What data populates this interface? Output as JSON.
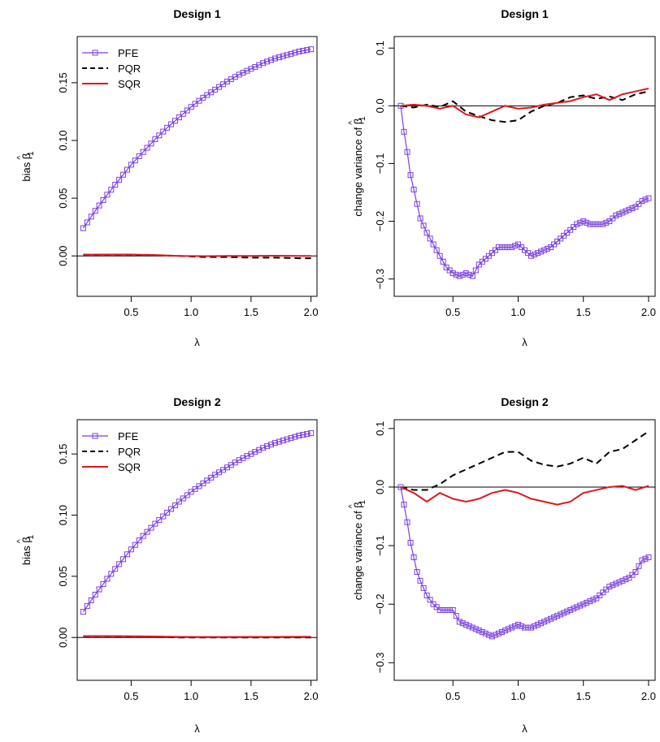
{
  "colors": {
    "PFE": "#7b3fe4",
    "PQR": "#000000",
    "SQR": "#e0181d",
    "axis": "#000000"
  },
  "chart_data": [
    {
      "type": "line",
      "title": "Design 1",
      "xlabel": "λ",
      "ylabel": "bias β̂₁",
      "ylabel_parts": {
        "main": "bias β",
        "sub": "1",
        "hat": true
      },
      "xlim": [
        0.05,
        2.05
      ],
      "ylim": [
        -0.035,
        0.19
      ],
      "xticks": [
        "0.5",
        "1.0",
        "1.5",
        "2.0"
      ],
      "yticks": [
        "0.00",
        "0.05",
        "0.10",
        "0.15"
      ],
      "legend": {
        "placement": "top-left",
        "entries": [
          "PFE",
          "PQR",
          "SQR"
        ]
      },
      "hline": 0,
      "series": [
        {
          "name": "PFE",
          "style": "line-square",
          "x": [
            0.1,
            0.2,
            0.3,
            0.4,
            0.5,
            0.6,
            0.7,
            0.8,
            0.9,
            1.0,
            1.1,
            1.2,
            1.3,
            1.4,
            1.5,
            1.6,
            1.7,
            1.8,
            1.9,
            2.0
          ],
          "y": [
            0.024,
            0.039,
            0.053,
            0.066,
            0.079,
            0.09,
            0.101,
            0.111,
            0.12,
            0.129,
            0.137,
            0.144,
            0.151,
            0.157,
            0.162,
            0.167,
            0.171,
            0.174,
            0.177,
            0.179
          ]
        },
        {
          "name": "PQR",
          "style": "dashed",
          "x": [
            0.1,
            0.3,
            0.5,
            0.7,
            0.9,
            1.1,
            1.3,
            1.5,
            1.7,
            1.9,
            2.0
          ],
          "y": [
            0.001,
            0.001,
            0.001,
            0.0005,
            0.0,
            -0.001,
            -0.001,
            -0.0015,
            -0.0015,
            -0.002,
            -0.002
          ]
        },
        {
          "name": "SQR",
          "style": "solid",
          "x": [
            0.1,
            0.3,
            0.5,
            0.7,
            0.9,
            1.1,
            1.3,
            1.5,
            1.7,
            1.9,
            2.0
          ],
          "y": [
            0.001,
            0.0012,
            0.0012,
            0.0008,
            0.0,
            -0.0002,
            0.0,
            0.0,
            0.0002,
            0.0,
            0.0
          ]
        }
      ]
    },
    {
      "type": "line",
      "title": "Design 1",
      "xlabel": "λ",
      "ylabel": "change variance of β̂₁",
      "ylabel_parts": {
        "main": "change variance of β",
        "sub": "1",
        "hat": true
      },
      "xlim": [
        0.05,
        2.05
      ],
      "ylim": [
        -0.33,
        0.12
      ],
      "xticks": [
        "0.5",
        "1.0",
        "1.5",
        "2.0"
      ],
      "yticks": [
        "0.1",
        "0.0",
        "−0.1",
        "−0.2",
        "−0.3"
      ],
      "ytick_values": [
        0.1,
        0.0,
        -0.1,
        -0.2,
        -0.3
      ],
      "hline": 0,
      "series": [
        {
          "name": "PFE",
          "style": "line-square",
          "x": [
            0.1,
            0.125,
            0.15,
            0.175,
            0.2,
            0.225,
            0.25,
            0.3,
            0.35,
            0.4,
            0.45,
            0.5,
            0.55,
            0.6,
            0.65,
            0.7,
            0.75,
            0.8,
            0.85,
            0.9,
            0.95,
            1.0,
            1.05,
            1.1,
            1.15,
            1.2,
            1.25,
            1.3,
            1.35,
            1.4,
            1.45,
            1.5,
            1.55,
            1.6,
            1.65,
            1.7,
            1.75,
            1.8,
            1.85,
            1.9,
            1.95,
            2.0
          ],
          "y": [
            0.0,
            -0.045,
            -0.08,
            -0.12,
            -0.145,
            -0.17,
            -0.195,
            -0.22,
            -0.24,
            -0.26,
            -0.28,
            -0.29,
            -0.295,
            -0.29,
            -0.295,
            -0.275,
            -0.265,
            -0.255,
            -0.245,
            -0.245,
            -0.245,
            -0.24,
            -0.25,
            -0.26,
            -0.255,
            -0.25,
            -0.245,
            -0.235,
            -0.225,
            -0.215,
            -0.205,
            -0.2,
            -0.205,
            -0.205,
            -0.205,
            -0.2,
            -0.19,
            -0.185,
            -0.18,
            -0.175,
            -0.165,
            -0.16
          ]
        },
        {
          "name": "PQR",
          "style": "dashed",
          "x": [
            0.1,
            0.2,
            0.3,
            0.4,
            0.5,
            0.6,
            0.7,
            0.8,
            0.9,
            1.0,
            1.1,
            1.2,
            1.3,
            1.4,
            1.5,
            1.6,
            1.7,
            1.8,
            1.9,
            2.0
          ],
          "y": [
            0.0,
            -0.003,
            0.002,
            -0.002,
            0.008,
            -0.01,
            -0.018,
            -0.025,
            -0.028,
            -0.025,
            -0.01,
            0.0,
            0.005,
            0.015,
            0.018,
            0.012,
            0.016,
            0.01,
            0.02,
            0.025
          ]
        },
        {
          "name": "SQR",
          "style": "solid",
          "x": [
            0.1,
            0.2,
            0.3,
            0.4,
            0.5,
            0.6,
            0.7,
            0.8,
            0.9,
            1.0,
            1.1,
            1.2,
            1.3,
            1.4,
            1.5,
            1.6,
            1.7,
            1.8,
            1.9,
            2.0
          ],
          "y": [
            0.0,
            0.002,
            0.0,
            -0.005,
            0.0,
            -0.015,
            -0.02,
            -0.01,
            0.0,
            -0.005,
            -0.003,
            0.002,
            0.005,
            0.008,
            0.015,
            0.02,
            0.01,
            0.02,
            0.025,
            0.03
          ]
        }
      ]
    },
    {
      "type": "line",
      "title": "Design 2",
      "xlabel": "λ",
      "ylabel": "bias β̂₁",
      "ylabel_parts": {
        "main": "bias β",
        "sub": "1",
        "hat": true
      },
      "xlim": [
        0.05,
        2.05
      ],
      "ylim": [
        -0.035,
        0.178
      ],
      "xticks": [
        "0.5",
        "1.0",
        "1.5",
        "2.0"
      ],
      "yticks": [
        "0.00",
        "0.05",
        "0.10",
        "0.15"
      ],
      "legend": {
        "placement": "top-left",
        "entries": [
          "PFE",
          "PQR",
          "SQR"
        ]
      },
      "hline": 0,
      "series": [
        {
          "name": "PFE",
          "style": "line-square",
          "x": [
            0.1,
            0.2,
            0.3,
            0.4,
            0.5,
            0.6,
            0.7,
            0.8,
            0.9,
            1.0,
            1.1,
            1.2,
            1.3,
            1.4,
            1.5,
            1.6,
            1.7,
            1.8,
            1.9,
            2.0
          ],
          "y": [
            0.021,
            0.035,
            0.048,
            0.06,
            0.072,
            0.083,
            0.093,
            0.102,
            0.111,
            0.119,
            0.126,
            0.133,
            0.139,
            0.145,
            0.15,
            0.155,
            0.159,
            0.162,
            0.165,
            0.167
          ]
        },
        {
          "name": "PQR",
          "style": "dashed",
          "x": [
            0.1,
            0.3,
            0.5,
            0.7,
            0.9,
            1.1,
            1.3,
            1.5,
            1.7,
            1.9,
            2.0
          ],
          "y": [
            0.001,
            0.001,
            0.0008,
            0.0005,
            0.0,
            0.0,
            0.0,
            0.0,
            0.0,
            0.0,
            0.0
          ]
        },
        {
          "name": "SQR",
          "style": "solid",
          "x": [
            0.1,
            0.3,
            0.5,
            0.7,
            0.9,
            1.1,
            1.3,
            1.5,
            1.7,
            1.9,
            2.0
          ],
          "y": [
            0.0012,
            0.0012,
            0.001,
            0.0008,
            0.0005,
            0.0004,
            0.0004,
            0.0005,
            0.0005,
            0.0006,
            0.0006
          ]
        }
      ]
    },
    {
      "type": "line",
      "title": "Design 2",
      "xlabel": "λ",
      "ylabel": "change variance of β̂₁",
      "ylabel_parts": {
        "main": "change variance of β",
        "sub": "1",
        "hat": true
      },
      "xlim": [
        0.05,
        2.05
      ],
      "ylim": [
        -0.33,
        0.115
      ],
      "xticks": [
        "0.5",
        "1.0",
        "1.5",
        "2.0"
      ],
      "yticks": [
        "0.1",
        "0.0",
        "−0.1",
        "−0.2",
        "−0.3"
      ],
      "ytick_values": [
        0.1,
        0.0,
        -0.1,
        -0.2,
        -0.3
      ],
      "hline": 0,
      "series": [
        {
          "name": "PFE",
          "style": "line-square",
          "x": [
            0.1,
            0.125,
            0.15,
            0.175,
            0.2,
            0.225,
            0.25,
            0.3,
            0.35,
            0.4,
            0.45,
            0.5,
            0.55,
            0.6,
            0.65,
            0.7,
            0.75,
            0.8,
            0.85,
            0.9,
            0.95,
            1.0,
            1.05,
            1.1,
            1.15,
            1.2,
            1.25,
            1.3,
            1.35,
            1.4,
            1.45,
            1.5,
            1.55,
            1.6,
            1.65,
            1.7,
            1.75,
            1.8,
            1.85,
            1.9,
            1.95,
            2.0
          ],
          "y": [
            0.0,
            -0.03,
            -0.06,
            -0.095,
            -0.12,
            -0.145,
            -0.16,
            -0.185,
            -0.2,
            -0.21,
            -0.21,
            -0.21,
            -0.23,
            -0.235,
            -0.24,
            -0.245,
            -0.25,
            -0.255,
            -0.25,
            -0.245,
            -0.24,
            -0.235,
            -0.24,
            -0.24,
            -0.235,
            -0.23,
            -0.225,
            -0.22,
            -0.215,
            -0.21,
            -0.205,
            -0.2,
            -0.195,
            -0.19,
            -0.18,
            -0.17,
            -0.165,
            -0.16,
            -0.155,
            -0.145,
            -0.125,
            -0.12
          ]
        },
        {
          "name": "PQR",
          "style": "dashed",
          "x": [
            0.1,
            0.2,
            0.3,
            0.4,
            0.5,
            0.6,
            0.7,
            0.8,
            0.9,
            1.0,
            1.1,
            1.2,
            1.3,
            1.4,
            1.5,
            1.6,
            1.7,
            1.8,
            1.9,
            2.0
          ],
          "y": [
            0.0,
            -0.005,
            -0.005,
            0.005,
            0.02,
            0.03,
            0.04,
            0.05,
            0.06,
            0.06,
            0.045,
            0.038,
            0.035,
            0.04,
            0.05,
            0.04,
            0.06,
            0.065,
            0.08,
            0.095
          ]
        },
        {
          "name": "SQR",
          "style": "solid",
          "x": [
            0.1,
            0.2,
            0.3,
            0.4,
            0.5,
            0.6,
            0.7,
            0.8,
            0.9,
            1.0,
            1.1,
            1.2,
            1.3,
            1.4,
            1.5,
            1.6,
            1.7,
            1.8,
            1.9,
            2.0
          ],
          "y": [
            0.0,
            -0.01,
            -0.025,
            -0.01,
            -0.02,
            -0.025,
            -0.02,
            -0.01,
            -0.005,
            -0.01,
            -0.02,
            -0.025,
            -0.03,
            -0.025,
            -0.01,
            -0.005,
            0.0,
            0.002,
            -0.005,
            0.002
          ]
        }
      ]
    }
  ]
}
